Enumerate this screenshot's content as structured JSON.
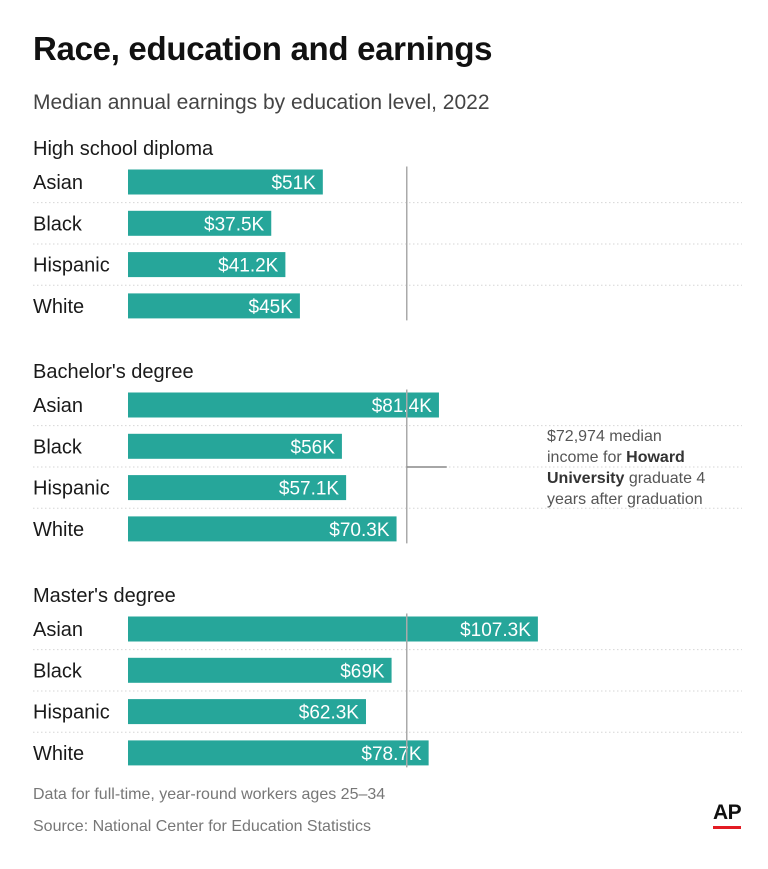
{
  "title": "Race, education and earnings",
  "subtitle": "Median annual earnings by education level, 2022",
  "chart_data": {
    "type": "bar",
    "orientation": "horizontal",
    "categories": [
      "Asian",
      "Black",
      "Hispanic",
      "White"
    ],
    "groups": [
      {
        "name": "High school diploma",
        "values": [
          51,
          37.5,
          41.2,
          45
        ],
        "labels": [
          "$51K",
          "$37.5K",
          "$41.2K",
          "$45K"
        ]
      },
      {
        "name": "Bachelor's degree",
        "values": [
          81.4,
          56,
          57.1,
          70.3
        ],
        "labels": [
          "$81.4K",
          "$56K",
          "$57.1K",
          "$70.3K"
        ]
      },
      {
        "name": "Master's degree",
        "values": [
          107.3,
          69,
          62.3,
          78.7
        ],
        "labels": [
          "$107.3K",
          "$69K",
          "$62.3K",
          "$78.7K"
        ]
      }
    ],
    "reference_line": {
      "value": 72.974,
      "annotation": [
        "$72,974 median",
        "income for ",
        "Howard",
        "University",
        " graduate 4",
        "years after graduation"
      ]
    },
    "bar_color": "#26a69a",
    "ref_line_color": "#aaaaaa",
    "grid": "dotted row separators"
  },
  "footer": {
    "note": "Data for full-time, year-round workers ages 25–34",
    "source": "Source: National Center for Education Statistics",
    "logo": "AP"
  }
}
